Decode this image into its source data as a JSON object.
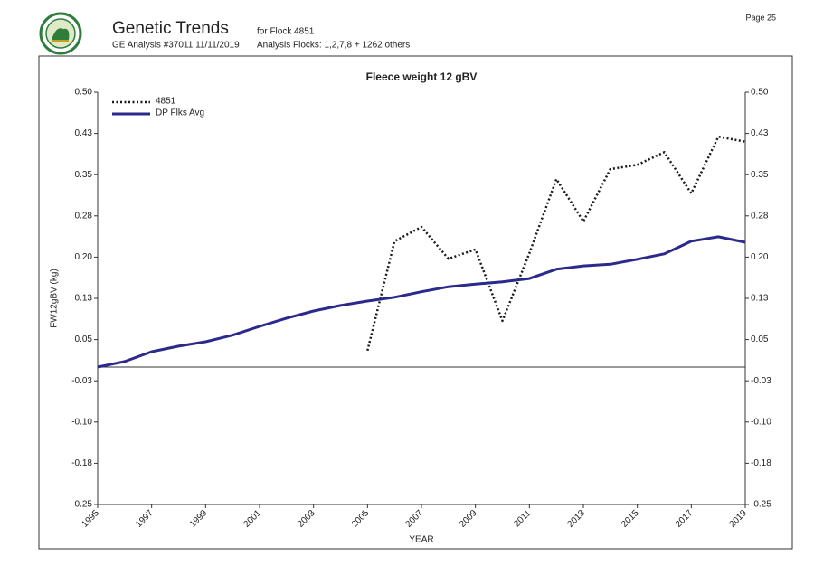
{
  "header": {
    "title": "Genetic Trends",
    "flock": "for Flock 4851",
    "analysis": "GE Analysis #37011 11/11/2019",
    "analysis_flocks": "Analysis Flocks: 1,2,7,8 + 1262 others",
    "page": "Page 25"
  },
  "chart_data": {
    "type": "line",
    "title": "Fleece weight 12 gBV",
    "x_label": "YEAR",
    "y_label": "FW12gBV (kg)",
    "x": [
      1995,
      1996,
      1997,
      1998,
      1999,
      2000,
      2001,
      2002,
      2003,
      2004,
      2005,
      2006,
      2007,
      2008,
      2009,
      2010,
      2011,
      2012,
      2013,
      2014,
      2015,
      2016,
      2017,
      2018,
      2019
    ],
    "series": [
      {
        "name": "4851",
        "color": "#1a1a1a",
        "dash": "dotted",
        "values": [
          null,
          null,
          null,
          null,
          null,
          null,
          null,
          null,
          null,
          null,
          0.03,
          0.229,
          0.255,
          0.197,
          0.214,
          0.084,
          0.207,
          0.342,
          0.265,
          0.36,
          0.368,
          0.391,
          0.316,
          0.419,
          0.41
        ]
      },
      {
        "name": "DP Flks Avg",
        "color": "#2b2a8c",
        "dash": "solid",
        "values": [
          0.0,
          0.01,
          0.028,
          0.038,
          0.046,
          0.058,
          0.074,
          0.089,
          0.102,
          0.112,
          0.12,
          0.127,
          0.137,
          0.146,
          0.151,
          0.155,
          0.161,
          0.178,
          0.184,
          0.187,
          0.196,
          0.206,
          0.229,
          0.237,
          0.227
        ]
      }
    ],
    "xlim": [
      1995,
      2019
    ],
    "xticks": [
      1995,
      1997,
      1999,
      2001,
      2003,
      2005,
      2007,
      2009,
      2011,
      2013,
      2015,
      2017,
      2019
    ],
    "ylim": [
      -0.25,
      0.5
    ],
    "yticks": [
      {
        "value": -0.25,
        "label": "-0.25"
      },
      {
        "value": -0.175,
        "label": "-0.18"
      },
      {
        "value": -0.1,
        "label": "-0.10"
      },
      {
        "value": -0.025,
        "label": "-0.03"
      },
      {
        "value": 0.05,
        "label": "0.05"
      },
      {
        "value": 0.125,
        "label": "0.13"
      },
      {
        "value": 0.2,
        "label": "0.20"
      },
      {
        "value": 0.275,
        "label": "0.28"
      },
      {
        "value": 0.35,
        "label": "0.35"
      },
      {
        "value": 0.425,
        "label": "0.43"
      },
      {
        "value": 0.5,
        "label": "0.50"
      }
    ],
    "right_axis": true,
    "grid": false,
    "legend": "upper left"
  }
}
